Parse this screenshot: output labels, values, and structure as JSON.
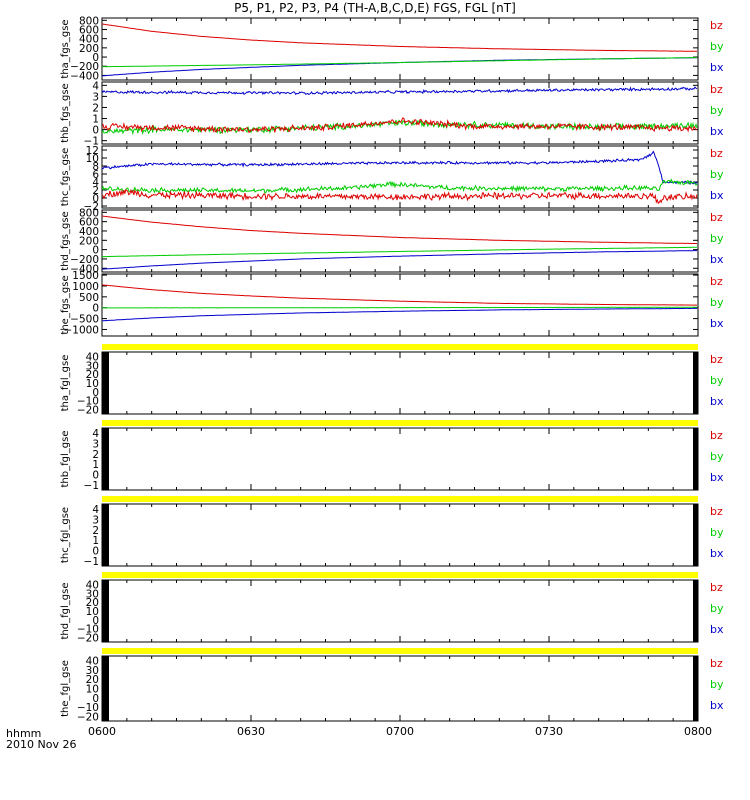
{
  "title": "P5, P1, P2, P3, P4 (TH-A,B,C,D,E) FGS, FGL [nT]",
  "footer": {
    "time_label": "hhmm",
    "date": "2010 Nov 26"
  },
  "colors": {
    "bz": "#dd0000",
    "by": "#00cc00",
    "bx": "#0000cc",
    "bar": "#ffff00"
  },
  "chart_data": [
    {
      "type": "line",
      "name": "tha_fgs_gse",
      "ylabel": "tha_fgs_gse",
      "ylim": [
        -500,
        850
      ],
      "yticks": [
        800,
        600,
        400,
        200,
        0,
        -200,
        -400
      ],
      "legend": [
        "bz",
        "by",
        "bx"
      ],
      "series": [
        {
          "name": "bz",
          "x": [
            0,
            10,
            20,
            30,
            40,
            60,
            80,
            100,
            120
          ],
          "y": [
            720,
            560,
            450,
            370,
            310,
            230,
            180,
            145,
            125
          ]
        },
        {
          "name": "by",
          "x": [
            0,
            30,
            60,
            90,
            120
          ],
          "y": [
            -210,
            -170,
            -120,
            -60,
            -10
          ]
        },
        {
          "name": "bx",
          "x": [
            0,
            10,
            20,
            40,
            60,
            80,
            100,
            120
          ],
          "y": [
            -410,
            -330,
            -270,
            -180,
            -120,
            -70,
            -40,
            -15
          ]
        }
      ],
      "noise": [
        2,
        2,
        2
      ]
    },
    {
      "type": "line",
      "name": "thb_fgs_gse",
      "ylabel": "thb_fgs_gse",
      "ylim": [
        -1.3,
        4.3
      ],
      "yticks": [
        4,
        3,
        2,
        1,
        0,
        -1
      ],
      "legend": [
        "bz",
        "by",
        "bx"
      ],
      "series": [
        {
          "name": "bz",
          "x": [
            0,
            30,
            45,
            60,
            75,
            90,
            120
          ],
          "y": [
            0.3,
            0.0,
            0.2,
            0.8,
            0.3,
            0.3,
            0.1
          ]
        },
        {
          "name": "by",
          "x": [
            0,
            10,
            30,
            50,
            60,
            80,
            100,
            120
          ],
          "y": [
            -0.2,
            0.0,
            0.0,
            0.3,
            0.6,
            0.4,
            0.2,
            0.4
          ]
        },
        {
          "name": "bx",
          "x": [
            0,
            40,
            80,
            120
          ],
          "y": [
            3.4,
            3.3,
            3.5,
            3.7
          ]
        }
      ],
      "noise": [
        0.35,
        0.35,
        0.15
      ]
    },
    {
      "type": "line",
      "name": "thc_fgs_gse",
      "ylabel": "thc_fgs_gse",
      "ylim": [
        -2.5,
        13
      ],
      "yticks": [
        12,
        10,
        8,
        6,
        4,
        2,
        0,
        -2
      ],
      "legend": [
        "bz",
        "by",
        "bx"
      ],
      "series": [
        {
          "name": "bz",
          "x": [
            0,
            5,
            10,
            30,
            60,
            90,
            111,
            112,
            113,
            120
          ],
          "y": [
            0.8,
            1.5,
            0.8,
            0.5,
            0.3,
            0.6,
            0.5,
            -1.2,
            0.2,
            0.3
          ]
        },
        {
          "name": "by",
          "x": [
            0,
            10,
            30,
            50,
            58,
            70,
            90,
            110,
            112,
            113,
            120
          ],
          "y": [
            2.3,
            2.0,
            1.8,
            2.5,
            3.5,
            2.5,
            2.3,
            2.5,
            2.0,
            4.0,
            3.8
          ]
        },
        {
          "name": "bx",
          "x": [
            0,
            10,
            30,
            60,
            90,
            108,
            110,
            111,
            112,
            113,
            120
          ],
          "y": [
            7.5,
            8.5,
            8.3,
            8.8,
            8.8,
            9.5,
            10.5,
            11.5,
            8.5,
            4.0,
            3.8
          ]
        }
      ],
      "noise": [
        1.0,
        0.7,
        0.4
      ]
    },
    {
      "type": "line",
      "name": "thd_fgs_gse",
      "ylabel": "thd_fgs_gse",
      "ylim": [
        -480,
        850
      ],
      "yticks": [
        800,
        600,
        400,
        200,
        0,
        -200,
        -400
      ],
      "legend": [
        "bz",
        "by",
        "bx"
      ],
      "series": [
        {
          "name": "bz",
          "x": [
            0,
            10,
            20,
            30,
            40,
            60,
            80,
            100,
            120
          ],
          "y": [
            720,
            590,
            490,
            410,
            350,
            260,
            200,
            160,
            130
          ]
        },
        {
          "name": "by",
          "x": [
            0,
            30,
            60,
            90,
            120
          ],
          "y": [
            -150,
            -90,
            -40,
            10,
            50
          ]
        },
        {
          "name": "bx",
          "x": [
            0,
            10,
            20,
            40,
            60,
            80,
            100,
            120
          ],
          "y": [
            -420,
            -350,
            -290,
            -200,
            -140,
            -90,
            -50,
            -20
          ]
        }
      ],
      "noise": [
        2,
        2,
        2
      ]
    },
    {
      "type": "line",
      "name": "the_fgs_gse",
      "ylabel": "the_fgs_gse",
      "ylim": [
        -1300,
        1550
      ],
      "yticks": [
        1500,
        1000,
        500,
        0,
        -500,
        -1000
      ],
      "legend": [
        "bz",
        "by",
        "bx"
      ],
      "series": [
        {
          "name": "bz",
          "x": [
            0,
            10,
            20,
            30,
            40,
            60,
            80,
            100,
            120
          ],
          "y": [
            1050,
            830,
            660,
            540,
            440,
            300,
            200,
            150,
            120
          ]
        },
        {
          "name": "by",
          "x": [
            0,
            60,
            120
          ],
          "y": [
            -10,
            5,
            20
          ]
        },
        {
          "name": "bx",
          "x": [
            0,
            10,
            20,
            40,
            60,
            80,
            100,
            120
          ],
          "y": [
            -600,
            -470,
            -370,
            -240,
            -160,
            -100,
            -60,
            -30
          ]
        }
      ],
      "noise": [
        4,
        4,
        4
      ]
    },
    {
      "type": "line",
      "name": "tha_fgl_gse",
      "ylabel": "tha_fgl_gse",
      "ylim": [
        -25,
        45
      ],
      "yticks": [
        40,
        30,
        20,
        10,
        0,
        -10,
        -20
      ],
      "legend": [
        "bz",
        "by",
        "bx"
      ],
      "series": []
    },
    {
      "type": "line",
      "name": "thb_fgl_gse",
      "ylabel": "thb_fgl_gse",
      "ylim": [
        -1.5,
        4.5
      ],
      "yticks": [
        4,
        3,
        2,
        1,
        0,
        -1
      ],
      "legend": [
        "bz",
        "by",
        "bx"
      ],
      "series": []
    },
    {
      "type": "line",
      "name": "thc_fgl_gse",
      "ylabel": "thc_fgl_gse",
      "ylim": [
        -1.5,
        4.5
      ],
      "yticks": [
        4,
        3,
        2,
        1,
        0,
        -1
      ],
      "legend": [
        "bz",
        "by",
        "bx"
      ],
      "series": []
    },
    {
      "type": "line",
      "name": "thd_fgl_gse",
      "ylabel": "thd_fgl_gse",
      "ylim": [
        -25,
        45
      ],
      "yticks": [
        40,
        30,
        20,
        10,
        0,
        -10,
        -20
      ],
      "legend": [
        "bz",
        "by",
        "bx"
      ],
      "series": []
    },
    {
      "type": "line",
      "name": "the_fgl_gse",
      "ylabel": "the_fgl_gse",
      "ylim": [
        -25,
        45
      ],
      "yticks": [
        40,
        30,
        20,
        10,
        0,
        -10,
        -20
      ],
      "legend": [
        "bz",
        "by",
        "bx"
      ],
      "series": []
    }
  ],
  "x_axis": {
    "unit": "minutes since 0600",
    "range": [
      0,
      120
    ],
    "ticks": [
      {
        "value": 0,
        "label": "0600"
      },
      {
        "value": 30,
        "label": "0630"
      },
      {
        "value": 60,
        "label": "0700"
      },
      {
        "value": 90,
        "label": "0730"
      },
      {
        "value": 120,
        "label": "0800"
      }
    ]
  }
}
